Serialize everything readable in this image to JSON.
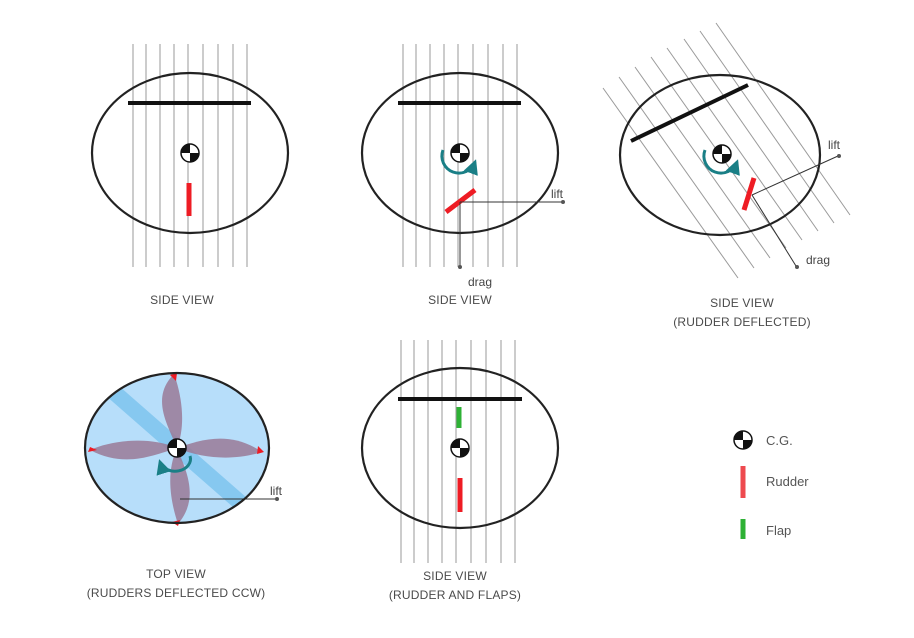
{
  "panels": {
    "p1": {
      "caption_line1": "SIDE VIEW"
    },
    "p2": {
      "caption_line1": "SIDE VIEW",
      "lift_label": "lift",
      "drag_label": "drag"
    },
    "p3": {
      "caption_line1": "SIDE VIEW",
      "caption_line2": "(RUDDER DEFLECTED)",
      "lift_label": "lift",
      "drag_label": "drag"
    },
    "p4": {
      "caption_line1": "TOP VIEW",
      "caption_line2": "(RUDDERS DEFLECTED CCW)",
      "lift_label": "lift"
    },
    "p5": {
      "caption_line1": "SIDE VIEW",
      "caption_line2": "(RUDDER AND FLAPS)"
    }
  },
  "legend": {
    "cg_label": "C.G.",
    "rudder_label": "Rudder",
    "flap_label": "Flap"
  },
  "colors": {
    "rudder": "#ee1c24",
    "flap": "#2eb135",
    "rotation_arrow": "#1a7f86",
    "top_view_body": "#b7defa",
    "top_view_strip": "#86c8f0",
    "top_view_blades": "#9a7a96"
  }
}
